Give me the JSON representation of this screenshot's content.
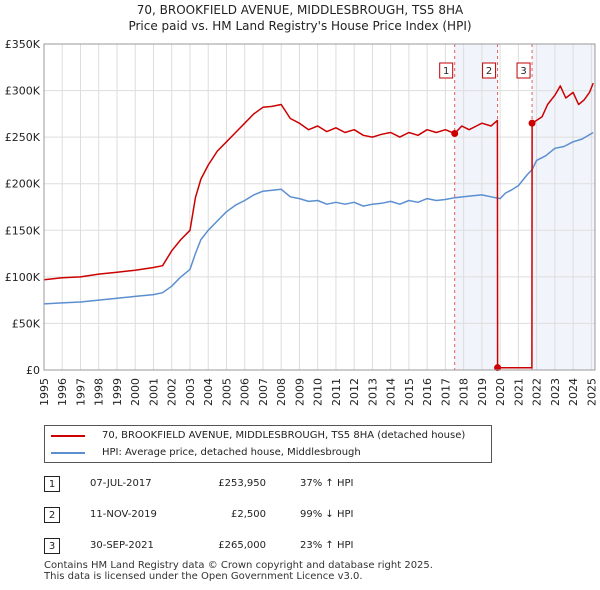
{
  "title": {
    "line1": "70, BROOKFIELD AVENUE, MIDDLESBROUGH, TS5 8HA",
    "line2": "Price paid vs. HM Land Registry's House Price Index (HPI)"
  },
  "colors": {
    "property": "#cc0000",
    "hpi": "#5b8fd0",
    "grid": "#dddddd",
    "marker_line": "#e06060"
  },
  "chart_data": {
    "type": "line",
    "title": "70, BROOKFIELD AVENUE, MIDDLESBROUGH, TS5 8HA — Price paid vs. HM Land Registry's House Price Index (HPI)",
    "xlabel": "",
    "ylabel": "",
    "xlim": [
      1995,
      2025.2
    ],
    "ylim": [
      0,
      350000
    ],
    "grid": true,
    "y_ticks": [
      0,
      50000,
      100000,
      150000,
      200000,
      250000,
      300000,
      350000
    ],
    "y_tick_labels": [
      "£0",
      "£50K",
      "£100K",
      "£150K",
      "£200K",
      "£250K",
      "£300K",
      "£350K"
    ],
    "x_ticks": [
      1995,
      1996,
      1997,
      1998,
      1999,
      2000,
      2001,
      2002,
      2003,
      2004,
      2005,
      2006,
      2007,
      2008,
      2009,
      2010,
      2011,
      2012,
      2013,
      2014,
      2015,
      2016,
      2017,
      2018,
      2019,
      2020,
      2021,
      2022,
      2023,
      2024,
      2025
    ],
    "x_tick_labels": [
      "1995",
      "1996",
      "1997",
      "1998",
      "1999",
      "2000",
      "2001",
      "2002",
      "2003",
      "2004",
      "2005",
      "2006",
      "2007",
      "2008",
      "2009",
      "2010",
      "2011",
      "2012",
      "2013",
      "2014",
      "2015",
      "2016",
      "2017",
      "2018",
      "2019",
      "2020",
      "2021",
      "2022",
      "2023",
      "2024",
      "2025"
    ],
    "series": [
      {
        "name": "70, BROOKFIELD AVENUE, MIDDLESBROUGH, TS5 8HA (detached house)",
        "x": [
          1995,
          1996,
          1997,
          1998,
          1999,
          2000,
          2001,
          2001.5,
          2002,
          2002.5,
          2003,
          2003.3,
          2003.6,
          2004,
          2004.5,
          2005,
          2005.5,
          2006,
          2006.5,
          2007,
          2007.5,
          2008,
          2008.5,
          2009,
          2009.5,
          2010,
          2010.5,
          2011,
          2011.5,
          2012,
          2012.5,
          2013,
          2013.5,
          2014,
          2014.5,
          2015,
          2015.5,
          2016,
          2016.5,
          2017,
          2017.51,
          2017.9,
          2018.3,
          2018.7,
          2019,
          2019.5,
          2019.85,
          2019.86,
          2020.5,
          2021,
          2021.5,
          2021.74,
          2021.75,
          2022,
          2022.3,
          2022.6,
          2023,
          2023.3,
          2023.6,
          2024,
          2024.3,
          2024.6,
          2024.9,
          2025.1
        ],
        "values": [
          97000,
          99000,
          100000,
          103000,
          105000,
          107000,
          110000,
          112000,
          128000,
          140000,
          150000,
          185000,
          205000,
          220000,
          235000,
          245000,
          255000,
          265000,
          275000,
          282000,
          283000,
          285000,
          270000,
          265000,
          258000,
          262000,
          256000,
          260000,
          255000,
          258000,
          252000,
          250000,
          253000,
          255000,
          250000,
          255000,
          252000,
          258000,
          255000,
          258000,
          253950,
          262000,
          258000,
          262000,
          265000,
          262000,
          268000,
          2500,
          2500,
          2500,
          2500,
          2500,
          265000,
          268000,
          272000,
          285000,
          295000,
          305000,
          292000,
          298000,
          285000,
          290000,
          298000,
          308000
        ]
      },
      {
        "name": "HPI: Average price, detached house, Middlesbrough",
        "x": [
          1995,
          1996,
          1997,
          1998,
          1999,
          2000,
          2001,
          2001.5,
          2002,
          2002.5,
          2003,
          2003.3,
          2003.6,
          2004,
          2004.5,
          2005,
          2005.5,
          2006,
          2006.5,
          2007,
          2007.5,
          2008,
          2008.5,
          2009,
          2009.5,
          2010,
          2010.5,
          2011,
          2011.5,
          2012,
          2012.5,
          2013,
          2013.5,
          2014,
          2014.5,
          2015,
          2015.5,
          2016,
          2016.5,
          2017,
          2017.51,
          2018,
          2018.5,
          2019,
          2019.5,
          2020,
          2020.3,
          2020.6,
          2021,
          2021.5,
          2021.75,
          2022,
          2022.5,
          2023,
          2023.5,
          2024,
          2024.5,
          2025.1
        ],
        "values": [
          71000,
          72000,
          73000,
          75000,
          77000,
          79000,
          81000,
          83000,
          90000,
          100000,
          108000,
          125000,
          140000,
          150000,
          160000,
          170000,
          177000,
          182000,
          188000,
          192000,
          193000,
          194000,
          186000,
          184000,
          181000,
          182000,
          178000,
          180000,
          178000,
          180000,
          176000,
          178000,
          179000,
          181000,
          178000,
          182000,
          180000,
          184000,
          182000,
          183000,
          185000,
          186000,
          187000,
          188000,
          186000,
          184000,
          190000,
          193000,
          198000,
          210000,
          215000,
          225000,
          230000,
          238000,
          240000,
          245000,
          248000,
          255000
        ]
      }
    ],
    "sales": [
      {
        "label": "1",
        "x": 2017.51,
        "value": 253950
      },
      {
        "label": "2",
        "x": 2019.86,
        "value": 2500
      },
      {
        "label": "3",
        "x": 2021.75,
        "value": 265000
      }
    ],
    "shaded_ranges": [
      [
        2017.51,
        2019.86
      ],
      [
        2021.75,
        2025.2
      ]
    ]
  },
  "legend": {
    "property_label": "70, BROOKFIELD AVENUE, MIDDLESBROUGH, TS5 8HA (detached house)",
    "hpi_label": "HPI: Average price, detached house, Middlesbrough"
  },
  "sales_table": [
    {
      "num": "1",
      "date": "07-JUL-2017",
      "price": "£253,950",
      "hpi": "37% ↑ HPI"
    },
    {
      "num": "2",
      "date": "11-NOV-2019",
      "price": "£2,500",
      "hpi": "99% ↓ HPI"
    },
    {
      "num": "3",
      "date": "30-SEP-2021",
      "price": "£265,000",
      "hpi": "23% ↑ HPI"
    }
  ],
  "footer": {
    "line1": "Contains HM Land Registry data © Crown copyright and database right 2025.",
    "line2": "This data is licensed under the Open Government Licence v3.0."
  }
}
